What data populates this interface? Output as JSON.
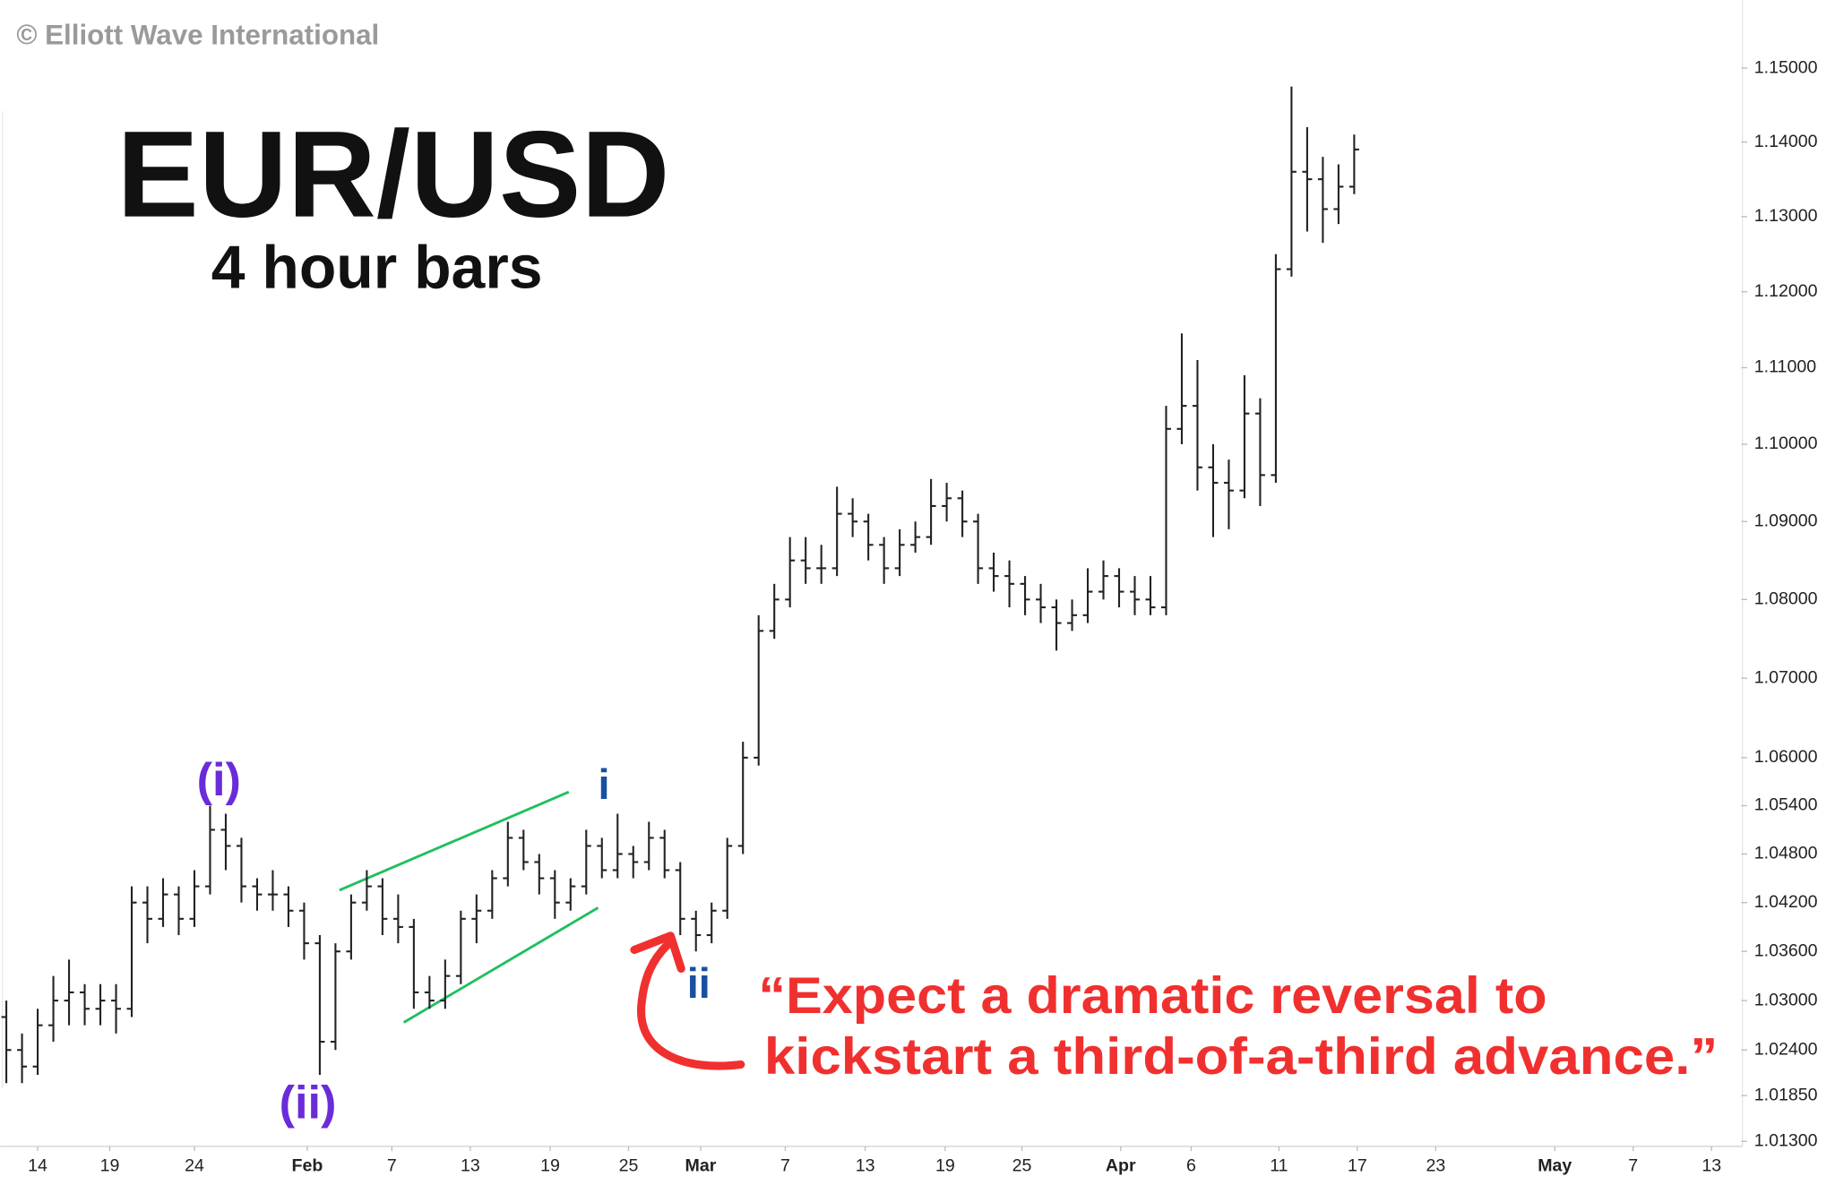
{
  "chart_data": {
    "type": "ohlc",
    "title": "EUR/USD",
    "subtitle": "4 hour bars",
    "watermark": "© Elliott Wave International",
    "color": "#222222",
    "log": true,
    "grid": false,
    "x": [
      0,
      1,
      2,
      3,
      4,
      5,
      6,
      7,
      8,
      9,
      10,
      11,
      12,
      13,
      14,
      15,
      16,
      17,
      18,
      19,
      20,
      21,
      22,
      23,
      24,
      25,
      26,
      27,
      28,
      29,
      30,
      31,
      32,
      33,
      34,
      35,
      36,
      37,
      38,
      39,
      40,
      41,
      42,
      43,
      44,
      45,
      46,
      47,
      48,
      49,
      50,
      51,
      52,
      53,
      54,
      55,
      56,
      57,
      58,
      59,
      60,
      61,
      62,
      63,
      64,
      65,
      66,
      67,
      68,
      69,
      70,
      71,
      72,
      73,
      74,
      75,
      76,
      77,
      78,
      79,
      80,
      81,
      82,
      83,
      84,
      85,
      86
    ],
    "open": [
      1.028,
      1.024,
      1.022,
      1.027,
      1.03,
      1.031,
      1.029,
      1.03,
      1.029,
      1.042,
      1.04,
      1.043,
      1.04,
      1.044,
      1.051,
      1.049,
      1.044,
      1.043,
      1.043,
      1.041,
      1.037,
      1.025,
      1.036,
      1.042,
      1.044,
      1.04,
      1.039,
      1.031,
      1.03,
      1.033,
      1.04,
      1.041,
      1.045,
      1.05,
      1.047,
      1.045,
      1.042,
      1.044,
      1.049,
      1.046,
      1.048,
      1.047,
      1.05,
      1.046,
      1.04,
      1.038,
      1.041,
      1.049,
      1.06,
      1.076,
      1.08,
      1.085,
      1.084,
      1.084,
      1.091,
      1.09,
      1.087,
      1.084,
      1.087,
      1.088,
      1.092,
      1.093,
      1.09,
      1.084,
      1.083,
      1.082,
      1.08,
      1.079,
      1.077,
      1.078,
      1.081,
      1.083,
      1.081,
      1.08,
      1.079,
      1.102,
      1.105,
      1.097,
      1.095,
      1.094,
      1.104,
      1.096,
      1.123,
      1.136,
      1.135,
      1.131,
      1.134
    ],
    "high": [
      1.03,
      1.026,
      1.029,
      1.033,
      1.035,
      1.032,
      1.032,
      1.032,
      1.044,
      1.044,
      1.045,
      1.044,
      1.046,
      1.054,
      1.053,
      1.05,
      1.045,
      1.046,
      1.044,
      1.042,
      1.038,
      1.037,
      1.043,
      1.046,
      1.045,
      1.043,
      1.04,
      1.033,
      1.035,
      1.041,
      1.043,
      1.046,
      1.052,
      1.051,
      1.048,
      1.046,
      1.045,
      1.051,
      1.05,
      1.053,
      1.049,
      1.052,
      1.051,
      1.047,
      1.041,
      1.042,
      1.05,
      1.062,
      1.078,
      1.082,
      1.088,
      1.088,
      1.087,
      1.0945,
      1.093,
      1.091,
      1.088,
      1.089,
      1.09,
      1.0955,
      1.095,
      1.094,
      1.091,
      1.086,
      1.085,
      1.083,
      1.082,
      1.08,
      1.08,
      1.084,
      1.085,
      1.084,
      1.083,
      1.083,
      1.105,
      1.1145,
      1.111,
      1.1,
      1.098,
      1.109,
      1.106,
      1.125,
      1.1475,
      1.142,
      1.138,
      1.137,
      1.141
    ],
    "low": [
      1.02,
      1.02,
      1.021,
      1.025,
      1.027,
      1.027,
      1.027,
      1.026,
      1.028,
      1.037,
      1.039,
      1.038,
      1.039,
      1.043,
      1.046,
      1.042,
      1.041,
      1.041,
      1.039,
      1.035,
      1.021,
      1.024,
      1.035,
      1.041,
      1.038,
      1.037,
      1.029,
      1.029,
      1.029,
      1.032,
      1.037,
      1.04,
      1.044,
      1.046,
      1.043,
      1.04,
      1.041,
      1.043,
      1.045,
      1.045,
      1.045,
      1.046,
      1.045,
      1.038,
      1.036,
      1.037,
      1.04,
      1.048,
      1.059,
      1.075,
      1.079,
      1.082,
      1.082,
      1.083,
      1.088,
      1.085,
      1.082,
      1.083,
      1.086,
      1.087,
      1.09,
      1.088,
      1.082,
      1.081,
      1.079,
      1.078,
      1.077,
      1.0735,
      1.076,
      1.077,
      1.08,
      1.079,
      1.078,
      1.078,
      1.078,
      1.1,
      1.094,
      1.088,
      1.089,
      1.093,
      1.092,
      1.095,
      1.122,
      1.128,
      1.1265,
      1.129,
      1.133
    ],
    "close": [
      1.024,
      1.022,
      1.027,
      1.03,
      1.031,
      1.029,
      1.03,
      1.029,
      1.042,
      1.04,
      1.043,
      1.04,
      1.044,
      1.051,
      1.049,
      1.044,
      1.043,
      1.043,
      1.041,
      1.037,
      1.025,
      1.036,
      1.042,
      1.044,
      1.04,
      1.039,
      1.031,
      1.03,
      1.033,
      1.04,
      1.041,
      1.045,
      1.05,
      1.047,
      1.045,
      1.042,
      1.044,
      1.049,
      1.046,
      1.048,
      1.047,
      1.05,
      1.046,
      1.04,
      1.038,
      1.041,
      1.049,
      1.06,
      1.076,
      1.08,
      1.085,
      1.084,
      1.084,
      1.091,
      1.09,
      1.087,
      1.084,
      1.087,
      1.088,
      1.092,
      1.093,
      1.09,
      1.084,
      1.083,
      1.082,
      1.08,
      1.079,
      1.077,
      1.078,
      1.081,
      1.083,
      1.081,
      1.08,
      1.079,
      1.102,
      1.105,
      1.097,
      1.095,
      1.094,
      1.104,
      1.096,
      1.123,
      1.136,
      1.135,
      1.131,
      1.134,
      1.139
    ],
    "xlim": [
      -0.4,
      110.7
    ],
    "xticks": [
      {
        "value": 2.0,
        "label": "14"
      },
      {
        "value": 6.6,
        "label": "19"
      },
      {
        "value": 12.0,
        "label": "24"
      },
      {
        "value": 19.2,
        "label": "Feb"
      },
      {
        "value": 24.6,
        "label": "7"
      },
      {
        "value": 29.6,
        "label": "13"
      },
      {
        "value": 34.7,
        "label": "19"
      },
      {
        "value": 39.7,
        "label": "25"
      },
      {
        "value": 44.3,
        "label": "Mar"
      },
      {
        "value": 49.7,
        "label": "7"
      },
      {
        "value": 54.8,
        "label": "13"
      },
      {
        "value": 59.9,
        "label": "19"
      },
      {
        "value": 64.8,
        "label": "25"
      },
      {
        "value": 71.1,
        "label": "Apr"
      },
      {
        "value": 75.6,
        "label": "6"
      },
      {
        "value": 81.2,
        "label": "11"
      },
      {
        "value": 86.2,
        "label": "17"
      },
      {
        "value": 91.2,
        "label": "23"
      },
      {
        "value": 98.8,
        "label": "May"
      },
      {
        "value": 103.8,
        "label": "7"
      },
      {
        "value": 108.8,
        "label": "13"
      }
    ],
    "ylim": [
      1.0124,
      1.1593
    ],
    "yticks": [
      {
        "value": 1.15,
        "label": "1.15000"
      },
      {
        "value": 1.14,
        "label": "1.14000"
      },
      {
        "value": 1.13,
        "label": "1.13000"
      },
      {
        "value": 1.12,
        "label": "1.12000"
      },
      {
        "value": 1.11,
        "label": "1.11000"
      },
      {
        "value": 1.1,
        "label": "1.10000"
      },
      {
        "value": 1.09,
        "label": "1.09000"
      },
      {
        "value": 1.08,
        "label": "1.08000"
      },
      {
        "value": 1.07,
        "label": "1.07000"
      },
      {
        "value": 1.06,
        "label": "1.06000"
      },
      {
        "value": 1.054,
        "label": "1.05400"
      },
      {
        "value": 1.048,
        "label": "1.04800"
      },
      {
        "value": 1.042,
        "label": "1.04200"
      },
      {
        "value": 1.036,
        "label": "1.03600"
      },
      {
        "value": 1.03,
        "label": "1.03000"
      },
      {
        "value": 1.024,
        "label": "1.02400"
      },
      {
        "value": 1.0185,
        "label": "1.01850"
      },
      {
        "value": 1.013,
        "label": "1.01300"
      }
    ],
    "annotations": [
      {
        "text": "(i)",
        "color": "#6a2bd9"
      },
      {
        "text": "(ii)",
        "color": "#6a2bd9"
      },
      {
        "text": "i",
        "color": "#1a4fa0"
      },
      {
        "text": "ii",
        "color": "#1a4fa0"
      },
      {
        "text": "“Expect a dramatic reversal to",
        "color": "#f0302f"
      },
      {
        "text": "kickstart a third-of-a-third advance.”",
        "color": "#f0302f"
      }
    ]
  }
}
